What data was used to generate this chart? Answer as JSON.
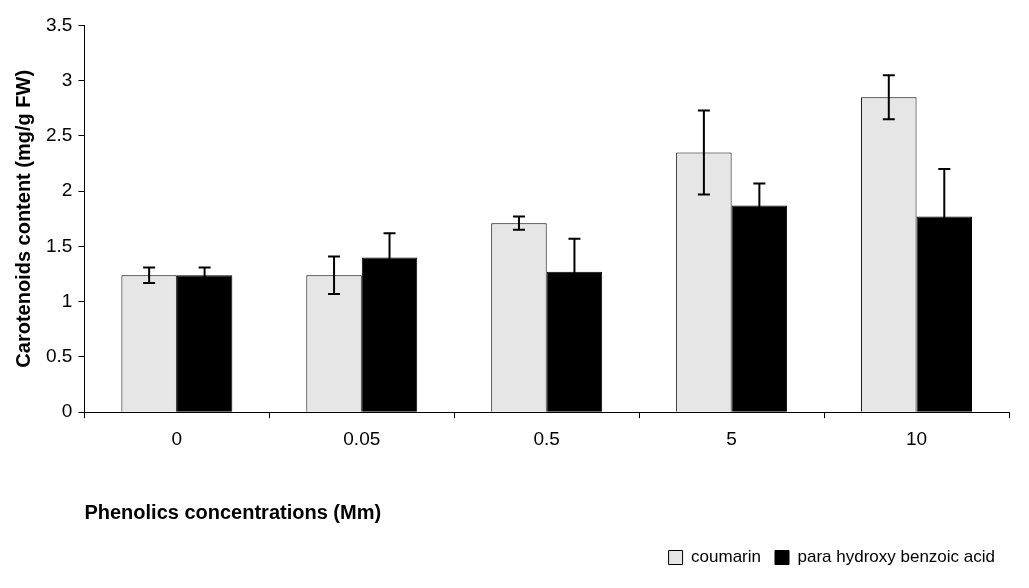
{
  "chart_data": {
    "type": "bar",
    "xlabel": "Phenolics concentrations (Mm)",
    "ylabel": "Carotenoids content (mg/g FW)",
    "categories": [
      "0",
      "0.05",
      "0.5",
      "5",
      "10"
    ],
    "series": [
      {
        "name": "coumarin",
        "color": "#e6e6e6",
        "values": [
          1.24,
          1.24,
          1.71,
          2.35,
          2.85
        ],
        "errors": [
          0.07,
          0.17,
          0.06,
          0.38,
          0.2
        ]
      },
      {
        "name": "para hydroxy benzoic acid",
        "color": "#000000",
        "values": [
          1.24,
          1.4,
          1.27,
          1.87,
          1.77
        ],
        "errors": [
          0.07,
          0.22,
          0.3,
          0.2,
          0.43
        ]
      }
    ],
    "ylim": [
      0,
      3.5
    ],
    "yticks": [
      0,
      0.5,
      1,
      1.5,
      2,
      2.5,
      3,
      3.5
    ],
    "grid": false,
    "legend": "bottom right"
  }
}
